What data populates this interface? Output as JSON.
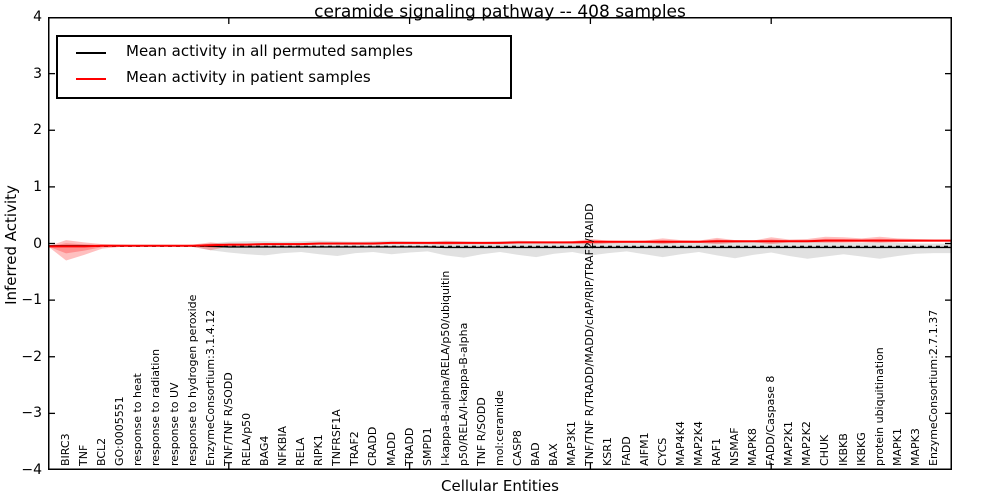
{
  "title": "ceramide signaling pathway -- 408 samples",
  "legend": {
    "items": [
      {
        "label": "Mean activity in all permuted samples",
        "color": "#000000"
      },
      {
        "label": "Mean activity in patient samples",
        "color": "#ff0000"
      }
    ]
  },
  "axes": {
    "xlabel": "Cellular Entities",
    "ylabel": "Inferred Activity",
    "ylim": [
      -4,
      4
    ],
    "xlim": [
      0,
      50
    ],
    "ytick_labels": [
      "4",
      "3",
      "2",
      "1",
      "0",
      "−1",
      "−2",
      "−3",
      "−4"
    ],
    "ytick_values": [
      4,
      3,
      2,
      1,
      0,
      -1,
      -2,
      -3,
      -4
    ],
    "xtick_values": [
      10,
      20,
      30,
      40
    ],
    "grid": false,
    "legend_position": "upper left"
  },
  "chart_data": {
    "type": "line",
    "title": "ceramide signaling pathway -- 408 samples",
    "sample_count": 408,
    "xlabel": "Cellular Entities",
    "ylabel": "Inferred Activity",
    "ylim": [
      -4,
      4
    ],
    "categories": [
      "BIRC3",
      "TNF",
      "BCL2",
      "GO:0005551",
      "response to heat",
      "response to radiation",
      "response to UV",
      "response to hydrogen peroxide",
      "EnzymeConsortium:3.1.4.12",
      "TNF/TNF R/SODD",
      "RELA/p50",
      "BAG4",
      "NFKBIA",
      "RELA",
      "RIPK1",
      "TNFRSF1A",
      "TRAF2",
      "CRADD",
      "MADD",
      "TRADD",
      "SMPD1",
      "I-kappa-B-alpha/RELA/p50/ubiquitin",
      "p50/RELA/I-kappa-B-alpha",
      "TNF R/SODD",
      "mol:ceramide",
      "CASP8",
      "BAD",
      "BAX",
      "MAP3K1",
      "TNF/TNF R/TRADD/MADD/cIAP/RIP/TRAF2/RAIDD",
      "KSR1",
      "FADD",
      "AIFM1",
      "CYCS",
      "MAP4K4",
      "MAP2K4",
      "RAF1",
      "NSMAF",
      "MAPK8",
      "FADD/Caspase 8",
      "MAP2K1",
      "MAP2K2",
      "CHUK",
      "IKBKB",
      "IKBKG",
      "protein ubiquitination",
      "MAPK1",
      "MAPK3",
      "EnzymeConsortium:2.7.1.37"
    ],
    "series": [
      {
        "name": "Mean activity in all permuted samples",
        "color": "#000000",
        "band_color": "#aaaaaa",
        "values": [
          -0.04,
          -0.04,
          -0.04,
          -0.04,
          -0.04,
          -0.04,
          -0.04,
          -0.04,
          -0.05,
          -0.06,
          -0.06,
          -0.06,
          -0.06,
          -0.06,
          -0.06,
          -0.06,
          -0.06,
          -0.06,
          -0.06,
          -0.06,
          -0.06,
          -0.07,
          -0.07,
          -0.07,
          -0.07,
          -0.07,
          -0.07,
          -0.07,
          -0.07,
          -0.07,
          -0.07,
          -0.07,
          -0.07,
          -0.07,
          -0.07,
          -0.07,
          -0.07,
          -0.07,
          -0.07,
          -0.07,
          -0.07,
          -0.07,
          -0.07,
          -0.07,
          -0.07,
          -0.07,
          -0.07,
          -0.07,
          -0.07
        ],
        "band_upper": [
          -0.02,
          -0.02,
          -0.02,
          -0.02,
          -0.02,
          -0.02,
          -0.02,
          -0.03,
          0.0,
          0.03,
          0.04,
          0.04,
          0.03,
          0.04,
          0.05,
          0.04,
          0.03,
          0.04,
          0.05,
          0.04,
          0.03,
          0.05,
          0.04,
          0.03,
          0.04,
          0.05,
          0.04,
          0.03,
          0.03,
          0.04,
          0.03,
          0.02,
          0.03,
          0.04,
          0.03,
          0.02,
          0.03,
          0.04,
          0.03,
          0.02,
          0.02,
          0.03,
          0.02,
          0.01,
          0.01,
          0.02,
          0.01,
          0.0,
          0.0
        ],
        "band_lower": [
          -0.06,
          -0.06,
          -0.06,
          -0.06,
          -0.06,
          -0.06,
          -0.06,
          -0.06,
          -0.12,
          -0.16,
          -0.19,
          -0.21,
          -0.17,
          -0.15,
          -0.19,
          -0.22,
          -0.17,
          -0.15,
          -0.19,
          -0.16,
          -0.14,
          -0.21,
          -0.25,
          -0.19,
          -0.15,
          -0.2,
          -0.24,
          -0.18,
          -0.15,
          -0.21,
          -0.17,
          -0.14,
          -0.19,
          -0.24,
          -0.19,
          -0.15,
          -0.21,
          -0.26,
          -0.2,
          -0.16,
          -0.22,
          -0.27,
          -0.23,
          -0.19,
          -0.23,
          -0.27,
          -0.22,
          -0.18,
          -0.17
        ]
      },
      {
        "name": "Mean activity in patient samples",
        "color": "#ff0000",
        "band_color": "#ff0000",
        "values": [
          -0.05,
          -0.05,
          -0.04,
          -0.04,
          -0.04,
          -0.04,
          -0.04,
          -0.04,
          -0.03,
          -0.02,
          -0.02,
          -0.01,
          -0.01,
          -0.01,
          0.0,
          0.0,
          0.0,
          0.0,
          0.01,
          0.01,
          0.01,
          0.01,
          0.01,
          0.01,
          0.01,
          0.02,
          0.02,
          0.02,
          0.02,
          0.03,
          0.03,
          0.03,
          0.03,
          0.03,
          0.03,
          0.03,
          0.04,
          0.04,
          0.04,
          0.04,
          0.04,
          0.04,
          0.05,
          0.05,
          0.05,
          0.05,
          0.05,
          0.05,
          0.05
        ],
        "band_upper": [
          0.06,
          0.02,
          -0.01,
          -0.02,
          -0.03,
          -0.03,
          -0.03,
          -0.02,
          0.02,
          -0.01,
          -0.01,
          0.0,
          0.0,
          0.01,
          0.01,
          0.02,
          0.01,
          0.02,
          0.02,
          0.02,
          0.02,
          0.04,
          0.03,
          0.02,
          0.03,
          0.03,
          0.03,
          0.03,
          0.04,
          0.08,
          0.05,
          0.04,
          0.05,
          0.09,
          0.06,
          0.05,
          0.1,
          0.06,
          0.05,
          0.11,
          0.07,
          0.08,
          0.12,
          0.11,
          0.09,
          0.12,
          0.09,
          0.08,
          0.07
        ],
        "band_lower": [
          -0.3,
          -0.2,
          -0.09,
          -0.06,
          -0.05,
          -0.05,
          -0.05,
          -0.06,
          -0.12,
          -0.05,
          -0.04,
          -0.03,
          -0.03,
          -0.03,
          -0.02,
          -0.02,
          -0.02,
          -0.02,
          -0.01,
          -0.01,
          -0.01,
          -0.02,
          -0.01,
          -0.01,
          -0.01,
          0.0,
          0.0,
          0.0,
          0.0,
          -0.02,
          0.0,
          0.01,
          0.01,
          -0.01,
          0.01,
          0.01,
          -0.01,
          0.01,
          0.02,
          -0.01,
          0.02,
          0.02,
          0.01,
          0.01,
          0.02,
          0.01,
          0.02,
          0.03,
          0.03
        ]
      }
    ],
    "zero_line": {
      "value": -0.05,
      "style": "dashed",
      "color": "#000000"
    }
  }
}
